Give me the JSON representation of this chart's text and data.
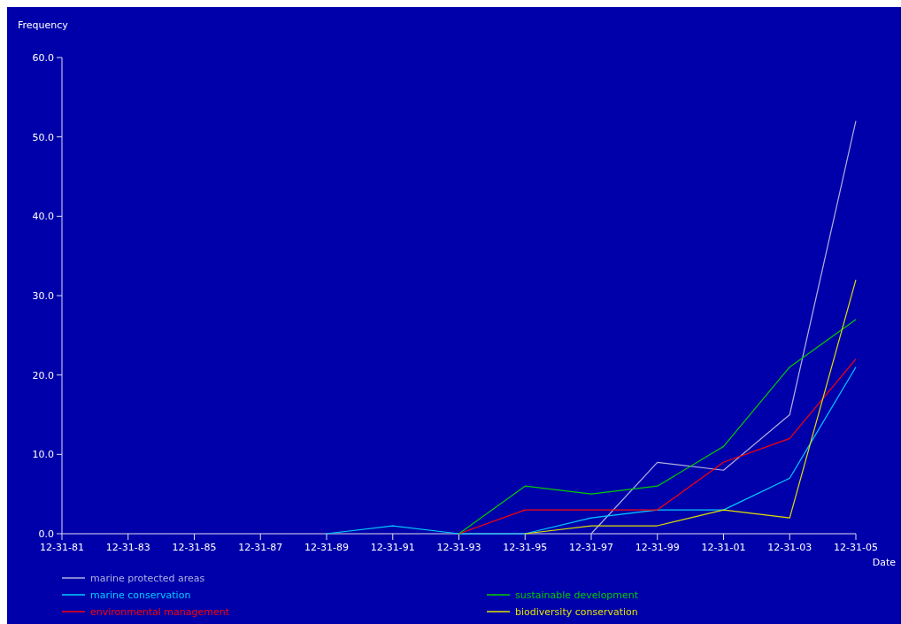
{
  "chart_data": {
    "type": "line",
    "xlabel": "Date",
    "ylabel": "Frequency",
    "categories": [
      "12-31-81",
      "12-31-83",
      "12-31-85",
      "12-31-87",
      "12-31-89",
      "12-31-91",
      "12-31-93",
      "12-31-95",
      "12-31-97",
      "12-31-99",
      "12-31-01",
      "12-31-03",
      "12-31-05"
    ],
    "ylim": [
      0,
      60
    ],
    "yticks": [
      {
        "value": 0,
        "label": "0.0"
      },
      {
        "value": 10,
        "label": "10.0"
      },
      {
        "value": 20,
        "label": "20.0"
      },
      {
        "value": 30,
        "label": "30.0"
      },
      {
        "value": 40,
        "label": "40.0"
      },
      {
        "value": 50,
        "label": "50.0"
      },
      {
        "value": 60,
        "label": "60.0"
      }
    ],
    "series": [
      {
        "name": "marine protected areas",
        "color": "#b0b0e0",
        "values": [
          null,
          null,
          null,
          null,
          null,
          null,
          null,
          null,
          0,
          9,
          8,
          15,
          52
        ]
      },
      {
        "name": "marine conservation",
        "color": "#00ccff",
        "values": [
          null,
          null,
          null,
          null,
          0,
          1,
          0,
          0,
          2,
          3,
          3,
          7,
          21
        ]
      },
      {
        "name": "environmental management",
        "color": "#ff0000",
        "values": [
          null,
          null,
          null,
          null,
          null,
          null,
          0,
          3,
          3,
          3,
          9,
          12,
          22
        ]
      },
      {
        "name": "sustainable development",
        "color": "#00cc00",
        "values": [
          null,
          null,
          null,
          null,
          null,
          null,
          0,
          6,
          5,
          6,
          11,
          21,
          27
        ]
      },
      {
        "name": "biodiversity conservation",
        "color": "#e0e000",
        "values": [
          null,
          null,
          null,
          null,
          null,
          null,
          null,
          0,
          1,
          1,
          3,
          2,
          32
        ]
      }
    ],
    "grid": false,
    "legend": "bottom",
    "marker": "none",
    "line_style": "solid"
  }
}
